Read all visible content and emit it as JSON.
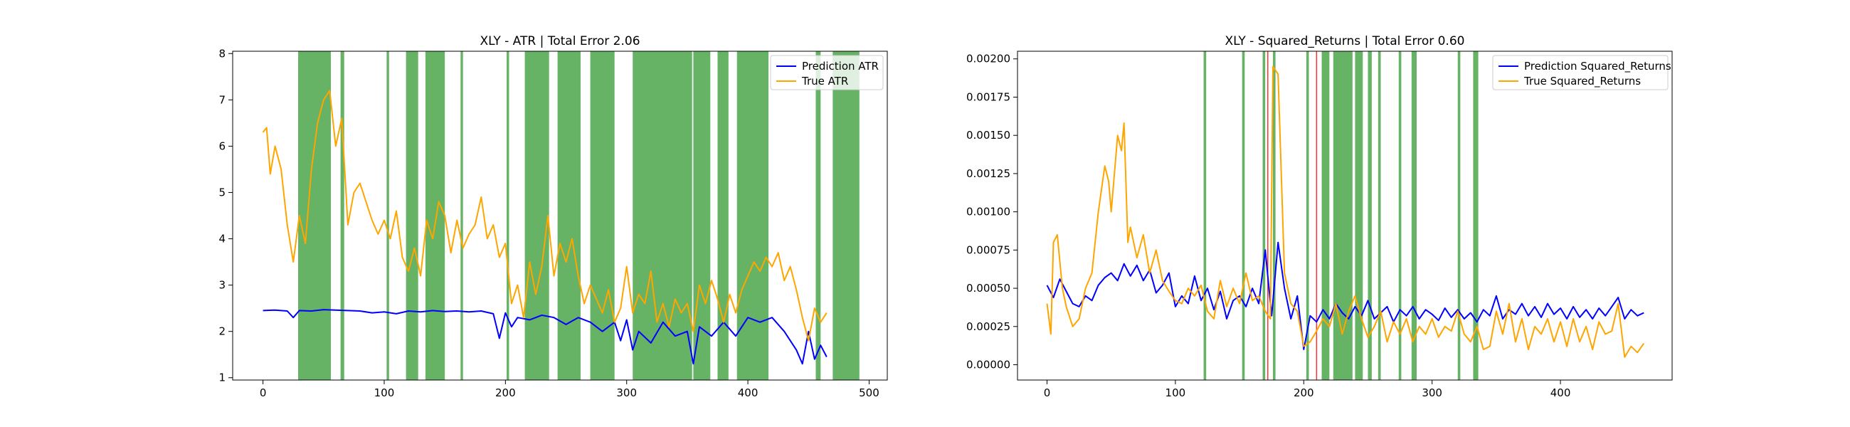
{
  "colors": {
    "prediction": "#0000ff",
    "true": "#ffa500",
    "green_band": "#008000",
    "red_line": "#ff0000"
  },
  "chart_data": [
    {
      "type": "line",
      "title": "XLY - ATR | Total Error 2.06",
      "xlim": [
        -25,
        515
      ],
      "ylim": [
        0.95,
        8.05
      ],
      "xticks": [
        0,
        100,
        200,
        300,
        400,
        500
      ],
      "yticks": [
        1,
        2,
        3,
        4,
        5,
        6,
        7,
        8
      ],
      "ytick_labels": [
        "1",
        "2",
        "3",
        "4",
        "5",
        "6",
        "7",
        "8"
      ],
      "legend_position": "top-right",
      "series": [
        {
          "name": "Prediction ATR",
          "color": "#0000ff",
          "x": [
            0,
            10,
            20,
            25,
            30,
            40,
            50,
            60,
            70,
            80,
            90,
            100,
            110,
            120,
            130,
            140,
            150,
            160,
            170,
            180,
            190,
            195,
            200,
            205,
            210,
            220,
            230,
            240,
            250,
            260,
            270,
            280,
            290,
            295,
            300,
            305,
            310,
            320,
            330,
            340,
            350,
            355,
            360,
            370,
            380,
            390,
            400,
            410,
            420,
            430,
            440,
            445,
            450,
            455,
            460,
            465
          ],
          "values": [
            2.45,
            2.46,
            2.44,
            2.3,
            2.45,
            2.44,
            2.47,
            2.46,
            2.45,
            2.44,
            2.4,
            2.42,
            2.38,
            2.44,
            2.42,
            2.45,
            2.43,
            2.44,
            2.42,
            2.44,
            2.38,
            1.85,
            2.4,
            2.1,
            2.3,
            2.25,
            2.35,
            2.3,
            2.15,
            2.3,
            2.2,
            2.0,
            2.2,
            1.8,
            2.25,
            1.6,
            2.0,
            1.75,
            2.2,
            1.9,
            2.0,
            1.3,
            2.1,
            1.9,
            2.2,
            1.9,
            2.3,
            2.2,
            2.3,
            2.0,
            1.6,
            1.3,
            2.0,
            1.4,
            1.7,
            1.45
          ]
        },
        {
          "name": "True ATR",
          "color": "#ffa500",
          "x": [
            0,
            3,
            6,
            10,
            15,
            20,
            25,
            30,
            35,
            40,
            45,
            50,
            55,
            60,
            65,
            70,
            75,
            80,
            85,
            90,
            95,
            100,
            105,
            110,
            115,
            120,
            125,
            130,
            135,
            140,
            145,
            150,
            155,
            160,
            165,
            170,
            175,
            180,
            185,
            190,
            195,
            200,
            205,
            210,
            215,
            220,
            225,
            230,
            235,
            240,
            245,
            250,
            255,
            260,
            265,
            270,
            275,
            280,
            285,
            290,
            295,
            300,
            305,
            310,
            315,
            320,
            325,
            330,
            335,
            340,
            345,
            350,
            355,
            360,
            365,
            370,
            375,
            380,
            385,
            390,
            395,
            400,
            405,
            410,
            415,
            420,
            425,
            430,
            435,
            440,
            445,
            450,
            455,
            460,
            465
          ],
          "values": [
            6.3,
            6.4,
            5.4,
            6.0,
            5.5,
            4.3,
            3.5,
            4.5,
            3.9,
            5.5,
            6.5,
            7.0,
            7.2,
            6.0,
            6.6,
            4.3,
            5.0,
            5.2,
            4.8,
            4.4,
            4.1,
            4.4,
            4.0,
            4.6,
            3.6,
            3.3,
            3.8,
            3.2,
            4.4,
            4.0,
            4.8,
            4.5,
            3.7,
            4.4,
            3.8,
            4.1,
            4.3,
            4.9,
            4.0,
            4.3,
            3.6,
            3.9,
            2.6,
            3.0,
            2.3,
            3.5,
            2.8,
            3.4,
            4.5,
            3.2,
            3.9,
            3.5,
            4.0,
            3.2,
            2.6,
            3.0,
            2.7,
            2.4,
            2.9,
            2.2,
            2.5,
            3.4,
            2.4,
            2.8,
            2.6,
            3.3,
            2.2,
            2.6,
            2.1,
            2.7,
            2.4,
            2.6,
            2.0,
            3.0,
            2.6,
            3.1,
            2.7,
            2.2,
            2.8,
            2.4,
            2.9,
            3.2,
            3.5,
            3.3,
            3.6,
            3.4,
            3.7,
            3.1,
            3.4,
            2.9,
            2.3,
            1.8,
            2.5,
            2.2,
            2.4
          ]
        }
      ],
      "green_bands_x": [
        [
          29,
          56
        ],
        [
          64,
          67
        ],
        [
          102,
          104
        ],
        [
          118,
          128
        ],
        [
          134,
          150
        ],
        [
          163,
          165
        ],
        [
          201,
          203
        ],
        [
          216,
          236
        ],
        [
          243,
          262
        ],
        [
          270,
          290
        ],
        [
          305,
          354
        ],
        [
          355,
          369
        ],
        [
          375,
          384
        ],
        [
          391,
          417
        ],
        [
          456,
          460
        ],
        [
          470,
          492
        ]
      ],
      "red_lines_x": []
    },
    {
      "type": "line",
      "title": "XLY - Squared_Returns | Total Error 0.60",
      "xlim": [
        -23,
        487
      ],
      "ylim": [
        -0.0001,
        0.00205
      ],
      "xticks": [
        0,
        100,
        200,
        300,
        400
      ],
      "yticks": [
        0,
        0.00025,
        0.0005,
        0.00075,
        0.001,
        0.00125,
        0.0015,
        0.00175,
        0.002
      ],
      "ytick_labels": [
        "0.00000",
        "0.00025",
        "0.00050",
        "0.00075",
        "0.00100",
        "0.00125",
        "0.00150",
        "0.00175",
        "0.00200"
      ],
      "legend_position": "top-right",
      "series": [
        {
          "name": "Prediction Squared_Returns",
          "color": "#0000ff",
          "x": [
            0,
            5,
            10,
            15,
            20,
            25,
            30,
            35,
            40,
            45,
            50,
            55,
            60,
            65,
            70,
            75,
            80,
            85,
            90,
            95,
            100,
            105,
            110,
            115,
            120,
            125,
            130,
            135,
            140,
            145,
            150,
            155,
            160,
            165,
            170,
            175,
            180,
            185,
            190,
            195,
            200,
            205,
            210,
            215,
            220,
            225,
            230,
            235,
            240,
            245,
            250,
            255,
            260,
            265,
            270,
            275,
            280,
            285,
            290,
            295,
            300,
            305,
            310,
            315,
            320,
            325,
            330,
            335,
            340,
            345,
            350,
            355,
            360,
            365,
            370,
            375,
            380,
            385,
            390,
            395,
            400,
            405,
            410,
            415,
            420,
            425,
            430,
            435,
            440,
            445,
            450,
            455,
            460,
            465
          ],
          "values": [
            0.00052,
            0.00044,
            0.00056,
            0.00048,
            0.0004,
            0.00038,
            0.00045,
            0.00042,
            0.00052,
            0.00057,
            0.0006,
            0.00055,
            0.00066,
            0.00058,
            0.00065,
            0.00055,
            0.00062,
            0.00047,
            0.00052,
            0.0006,
            0.00038,
            0.00045,
            0.0004,
            0.00058,
            0.00042,
            0.0005,
            0.00036,
            0.00048,
            0.0003,
            0.00042,
            0.00045,
            0.00038,
            0.0005,
            0.0004,
            0.00075,
            0.00032,
            0.0008,
            0.0005,
            0.0003,
            0.00045,
            0.0001,
            0.00032,
            0.00028,
            0.00036,
            0.0003,
            0.0004,
            0.00034,
            0.0003,
            0.00038,
            0.00032,
            0.00042,
            0.0003,
            0.00034,
            0.00038,
            0.00028,
            0.00036,
            0.00032,
            0.00038,
            0.0003,
            0.00036,
            0.00033,
            0.00029,
            0.00037,
            0.00031,
            0.00036,
            0.0003,
            0.00034,
            0.00028,
            0.00036,
            0.00032,
            0.00045,
            0.0003,
            0.00036,
            0.00033,
            0.0004,
            0.00032,
            0.00038,
            0.00031,
            0.0004,
            0.00033,
            0.00037,
            0.0003,
            0.00038,
            0.00031,
            0.00036,
            0.0003,
            0.00037,
            0.00032,
            0.00038,
            0.00044,
            0.0003,
            0.00036,
            0.00032,
            0.00034
          ]
        },
        {
          "name": "True Squared_Returns",
          "color": "#ffa500",
          "x": [
            0,
            3,
            5,
            8,
            12,
            15,
            20,
            25,
            30,
            35,
            40,
            45,
            48,
            50,
            55,
            58,
            60,
            63,
            65,
            70,
            75,
            80,
            85,
            90,
            95,
            100,
            105,
            110,
            115,
            120,
            125,
            130,
            135,
            140,
            145,
            150,
            155,
            160,
            165,
            170,
            174,
            176,
            180,
            185,
            190,
            195,
            200,
            205,
            210,
            215,
            220,
            225,
            230,
            235,
            240,
            245,
            250,
            255,
            260,
            265,
            270,
            275,
            280,
            285,
            290,
            295,
            300,
            305,
            310,
            315,
            320,
            325,
            330,
            335,
            340,
            345,
            350,
            355,
            360,
            365,
            370,
            375,
            380,
            385,
            390,
            395,
            400,
            405,
            410,
            415,
            420,
            425,
            430,
            435,
            440,
            445,
            450,
            455,
            460,
            465
          ],
          "values": [
            0.0004,
            0.0002,
            0.0008,
            0.00085,
            0.0005,
            0.00038,
            0.00025,
            0.0003,
            0.0005,
            0.0006,
            0.001,
            0.0013,
            0.0012,
            0.001,
            0.0015,
            0.0014,
            0.00158,
            0.0008,
            0.0009,
            0.0007,
            0.00085,
            0.0006,
            0.00075,
            0.00055,
            0.00048,
            0.00042,
            0.0004,
            0.0005,
            0.00045,
            0.00052,
            0.00035,
            0.0003,
            0.00055,
            0.00038,
            0.0005,
            0.0004,
            0.0006,
            0.00042,
            0.00045,
            0.00035,
            0.0003,
            0.00195,
            0.0019,
            0.0006,
            0.0004,
            0.00035,
            0.00012,
            0.00015,
            0.00022,
            0.0003,
            0.00025,
            0.0004,
            0.0002,
            0.00035,
            0.00045,
            0.0003,
            0.00018,
            0.00025,
            0.00035,
            0.00015,
            0.00028,
            0.0002,
            0.0003,
            0.00015,
            0.00025,
            0.0002,
            0.0003,
            0.00018,
            0.00025,
            0.00022,
            0.00035,
            0.0002,
            0.00015,
            0.00025,
            0.0001,
            0.00012,
            0.00035,
            0.0002,
            0.0004,
            0.00015,
            0.0003,
            0.0001,
            0.00025,
            0.0002,
            0.0003,
            0.00015,
            0.00028,
            0.00012,
            0.0003,
            0.00015,
            0.00025,
            0.0001,
            0.00028,
            0.0002,
            0.00022,
            0.0004,
            5e-05,
            0.00012,
            8e-05,
            0.00014
          ]
        }
      ],
      "green_bands_x": [
        [
          122,
          124
        ],
        [
          152,
          154
        ],
        [
          168,
          170
        ],
        [
          176,
          178
        ],
        [
          202,
          204
        ],
        [
          214,
          220
        ],
        [
          223,
          238
        ],
        [
          240,
          246
        ],
        [
          250,
          253
        ],
        [
          258,
          260
        ],
        [
          274,
          276
        ],
        [
          284,
          288
        ],
        [
          320,
          322
        ],
        [
          332,
          336
        ]
      ],
      "red_lines_x": [
        172,
        210
      ]
    }
  ]
}
